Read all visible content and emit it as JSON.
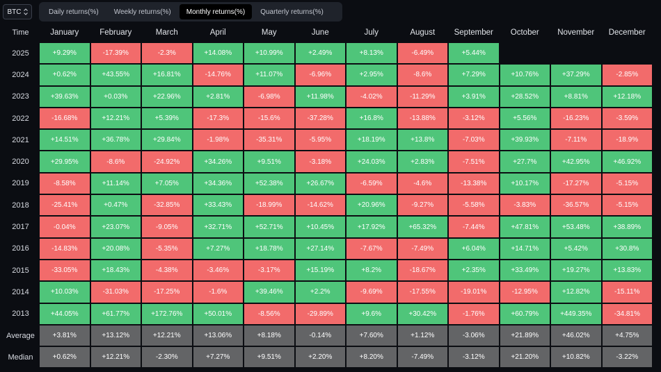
{
  "asset_selector": {
    "value": "BTC",
    "icon": "updown-chevron-icon"
  },
  "tabs": [
    {
      "label": "Daily returns(%)",
      "active": false
    },
    {
      "label": "Weekly returns(%)",
      "active": false
    },
    {
      "label": "Monthly returns(%)",
      "active": true
    },
    {
      "label": "Quarterly returns(%)",
      "active": false
    }
  ],
  "colors": {
    "positive": "#4fc57a",
    "negative": "#f26b6b",
    "stat": "#636466",
    "background": "#0b0d12"
  },
  "table": {
    "corner_header": "Time",
    "months": [
      "January",
      "February",
      "March",
      "April",
      "May",
      "June",
      "July",
      "August",
      "September",
      "October",
      "November",
      "December"
    ],
    "rows": [
      {
        "year": "2025",
        "values": [
          "+9.29%",
          "-17.39%",
          "-2.3%",
          "+14.08%",
          "+10.99%",
          "+2.49%",
          "+8.13%",
          "-6.49%",
          "+5.44%",
          "",
          "",
          ""
        ]
      },
      {
        "year": "2024",
        "values": [
          "+0.62%",
          "+43.55%",
          "+16.81%",
          "-14.76%",
          "+11.07%",
          "-6.96%",
          "+2.95%",
          "-8.6%",
          "+7.29%",
          "+10.76%",
          "+37.29%",
          "-2.85%"
        ]
      },
      {
        "year": "2023",
        "values": [
          "+39.63%",
          "+0.03%",
          "+22.96%",
          "+2.81%",
          "-6.98%",
          "+11.98%",
          "-4.02%",
          "-11.29%",
          "+3.91%",
          "+28.52%",
          "+8.81%",
          "+12.18%"
        ]
      },
      {
        "year": "2022",
        "values": [
          "-16.68%",
          "+12.21%",
          "+5.39%",
          "-17.3%",
          "-15.6%",
          "-37.28%",
          "+16.8%",
          "-13.88%",
          "-3.12%",
          "+5.56%",
          "-16.23%",
          "-3.59%"
        ]
      },
      {
        "year": "2021",
        "values": [
          "+14.51%",
          "+36.78%",
          "+29.84%",
          "-1.98%",
          "-35.31%",
          "-5.95%",
          "+18.19%",
          "+13.8%",
          "-7.03%",
          "+39.93%",
          "-7.11%",
          "-18.9%"
        ]
      },
      {
        "year": "2020",
        "values": [
          "+29.95%",
          "-8.6%",
          "-24.92%",
          "+34.26%",
          "+9.51%",
          "-3.18%",
          "+24.03%",
          "+2.83%",
          "-7.51%",
          "+27.7%",
          "+42.95%",
          "+46.92%"
        ]
      },
      {
        "year": "2019",
        "values": [
          "-8.58%",
          "+11.14%",
          "+7.05%",
          "+34.36%",
          "+52.38%",
          "+26.67%",
          "-6.59%",
          "-4.6%",
          "-13.38%",
          "+10.17%",
          "-17.27%",
          "-5.15%"
        ]
      },
      {
        "year": "2018",
        "values": [
          "-25.41%",
          "+0.47%",
          "-32.85%",
          "+33.43%",
          "-18.99%",
          "-14.62%",
          "+20.96%",
          "-9.27%",
          "-5.58%",
          "-3.83%",
          "-36.57%",
          "-5.15%"
        ]
      },
      {
        "year": "2017",
        "values": [
          "-0.04%",
          "+23.07%",
          "-9.05%",
          "+32.71%",
          "+52.71%",
          "+10.45%",
          "+17.92%",
          "+65.32%",
          "-7.44%",
          "+47.81%",
          "+53.48%",
          "+38.89%"
        ]
      },
      {
        "year": "2016",
        "values": [
          "-14.83%",
          "+20.08%",
          "-5.35%",
          "+7.27%",
          "+18.78%",
          "+27.14%",
          "-7.67%",
          "-7.49%",
          "+6.04%",
          "+14.71%",
          "+5.42%",
          "+30.8%"
        ]
      },
      {
        "year": "2015",
        "values": [
          "-33.05%",
          "+18.43%",
          "-4.38%",
          "-3.46%",
          "-3.17%",
          "+15.19%",
          "+8.2%",
          "-18.67%",
          "+2.35%",
          "+33.49%",
          "+19.27%",
          "+13.83%"
        ]
      },
      {
        "year": "2014",
        "values": [
          "+10.03%",
          "-31.03%",
          "-17.25%",
          "-1.6%",
          "+39.46%",
          "+2.2%",
          "-9.69%",
          "-17.55%",
          "-19.01%",
          "-12.95%",
          "+12.82%",
          "-15.11%"
        ]
      },
      {
        "year": "2013",
        "values": [
          "+44.05%",
          "+61.77%",
          "+172.76%",
          "+50.01%",
          "-8.56%",
          "-29.89%",
          "+9.6%",
          "+30.42%",
          "-1.76%",
          "+60.79%",
          "+449.35%",
          "-34.81%"
        ]
      }
    ],
    "stats": [
      {
        "label": "Average",
        "values": [
          "+3.81%",
          "+13.12%",
          "+12.21%",
          "+13.06%",
          "+8.18%",
          "-0.14%",
          "+7.60%",
          "+1.12%",
          "-3.06%",
          "+21.89%",
          "+46.02%",
          "+4.75%"
        ]
      },
      {
        "label": "Median",
        "values": [
          "+0.62%",
          "+12.21%",
          "-2.30%",
          "+7.27%",
          "+9.51%",
          "+2.20%",
          "+8.20%",
          "-7.49%",
          "-3.12%",
          "+21.20%",
          "+10.82%",
          "-3.22%"
        ]
      }
    ]
  }
}
